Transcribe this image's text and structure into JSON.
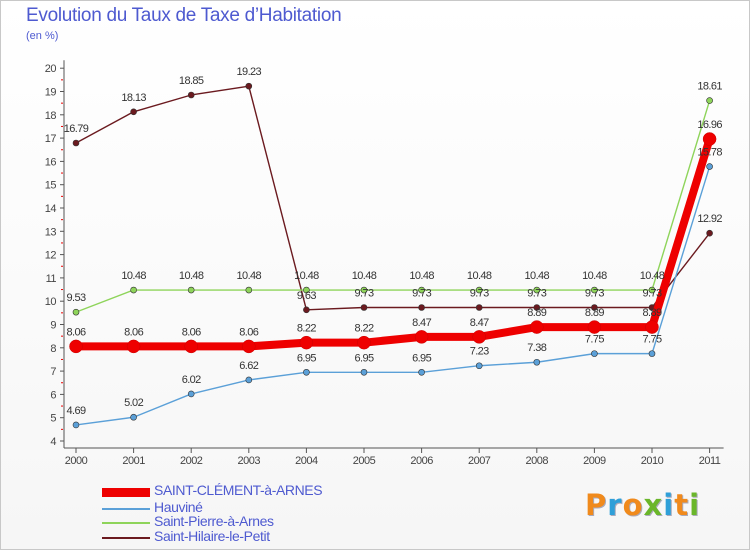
{
  "title": "Evolution du Taux de Taxe d’Habitation",
  "subtitle": "(en %)",
  "logo": {
    "letters": [
      "P",
      "r",
      "o",
      "x",
      "i",
      "t",
      "i"
    ],
    "colors": [
      "#f08a1c",
      "#2f9fd8",
      "#f08a1c",
      "#6ab62a",
      "#2f9fd8",
      "#f08a1c",
      "#6ab62a"
    ]
  },
  "chart_data": {
    "type": "line",
    "x": [
      "2000",
      "2001",
      "2002",
      "2003",
      "2004",
      "2005",
      "2006",
      "2007",
      "2008",
      "2009",
      "2010",
      "2011"
    ],
    "ylim": [
      4,
      20
    ],
    "yticks": [
      "4",
      "5",
      "6",
      "7",
      "8",
      "9",
      "10",
      "11",
      "12",
      "13",
      "14",
      "15",
      "16",
      "17",
      "18",
      "19",
      "20"
    ],
    "grid": false,
    "legend_position": "bottom-left",
    "series": [
      {
        "name": "Saint-Hilaire-le-Petit",
        "color": "#6b1a1f",
        "values": [
          16.79,
          18.13,
          18.85,
          19.23,
          9.63,
          9.73,
          9.73,
          9.73,
          9.73,
          9.73,
          9.73,
          12.92
        ],
        "labels": [
          "16.79",
          "18.13",
          "18.85",
          "19.23",
          "9.63",
          "9.73",
          "9.73",
          "9.73",
          "9.73",
          "9.73",
          "9.73",
          "12.92"
        ]
      },
      {
        "name": "Saint-Pierre-à-Arnes",
        "color": "#8ed45a",
        "values": [
          9.53,
          10.48,
          10.48,
          10.48,
          10.48,
          10.48,
          10.48,
          10.48,
          10.48,
          10.48,
          10.48,
          18.61
        ],
        "labels": [
          "9.53",
          "10.48",
          "10.48",
          "10.48",
          "10.48",
          "10.48",
          "10.48",
          "10.48",
          "10.48",
          "10.48",
          "10.48",
          "18.61"
        ]
      },
      {
        "name": "Hauviné",
        "color": "#5ba0d8",
        "values": [
          4.69,
          5.02,
          6.02,
          6.62,
          6.95,
          6.95,
          6.95,
          7.23,
          7.38,
          7.75,
          7.75,
          15.78
        ],
        "labels": [
          "4.69",
          "5.02",
          "6.02",
          "6.62",
          "6.95",
          "6.95",
          "6.95",
          "7.23",
          "7.38",
          "7.75",
          "7.75",
          "15.78"
        ]
      },
      {
        "name": "SAINT-CLÉMENT-à-ARNES",
        "color": "#ee0000",
        "values": [
          8.06,
          8.06,
          8.06,
          8.06,
          8.22,
          8.22,
          8.47,
          8.47,
          8.89,
          8.89,
          8.89,
          16.96
        ],
        "labels": [
          "8.06",
          "8.06",
          "8.06",
          "8.06",
          "8.22",
          "8.22",
          "8.47",
          "8.47",
          "8.89",
          "8.89",
          "8.89",
          "16.96"
        ]
      }
    ],
    "legend_order": [
      "SAINT-CLÉMENT-à-ARNES",
      "Hauviné",
      "Saint-Pierre-à-Arnes",
      "Saint-Hilaire-le-Petit"
    ]
  }
}
